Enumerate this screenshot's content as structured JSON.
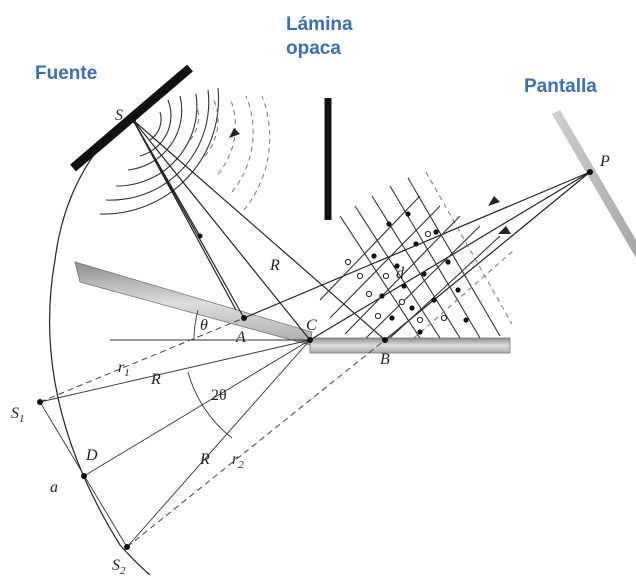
{
  "labels": {
    "fuente": "Fuente",
    "lamina_line1": "Lámina",
    "lamina_line2": "opaca",
    "pantalla": "Pantalla"
  },
  "points": {
    "S": "S",
    "P": "P",
    "A": "A",
    "B": "B",
    "C": "C",
    "D": "D",
    "a": "a",
    "d": "d",
    "theta": "θ",
    "two_theta": "2θ",
    "R": "R",
    "r": "r",
    "sub1": "1",
    "sub2": "2"
  },
  "colors": {
    "label_blue": "#3b6fb6",
    "ink": "#222222",
    "mirror_fill": "#b9b9b9",
    "screen_gray": "#c4c4c4"
  }
}
